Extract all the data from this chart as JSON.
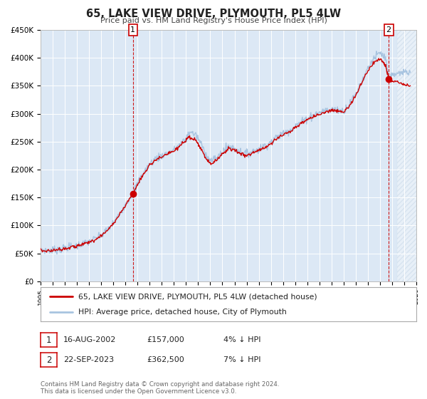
{
  "title": "65, LAKE VIEW DRIVE, PLYMOUTH, PL5 4LW",
  "subtitle": "Price paid vs. HM Land Registry's House Price Index (HPI)",
  "ylim": [
    0,
    450000
  ],
  "xlim_start": 1995,
  "xlim_end": 2026,
  "yticks": [
    0,
    50000,
    100000,
    150000,
    200000,
    250000,
    300000,
    350000,
    400000,
    450000
  ],
  "ytick_labels": [
    "£0",
    "£50K",
    "£100K",
    "£150K",
    "£200K",
    "£250K",
    "£300K",
    "£350K",
    "£400K",
    "£450K"
  ],
  "sale1_date": 2002.62,
  "sale1_price": 157000,
  "sale2_date": 2023.72,
  "sale2_price": 362500,
  "hpi_color": "#a8c4e0",
  "price_color": "#cc0000",
  "background_color": "#ffffff",
  "plot_bg_color": "#dce8f5",
  "grid_color": "#ffffff",
  "legend_label_price": "65, LAKE VIEW DRIVE, PLYMOUTH, PL5 4LW (detached house)",
  "legend_label_hpi": "HPI: Average price, detached house, City of Plymouth",
  "annotation1_date": "16-AUG-2002",
  "annotation1_price": "£157,000",
  "annotation1_hpi": "4% ↓ HPI",
  "annotation2_date": "22-SEP-2023",
  "annotation2_price": "£362,500",
  "annotation2_hpi": "7% ↓ HPI",
  "footnote": "Contains HM Land Registry data © Crown copyright and database right 2024.\nThis data is licensed under the Open Government Licence v3.0."
}
